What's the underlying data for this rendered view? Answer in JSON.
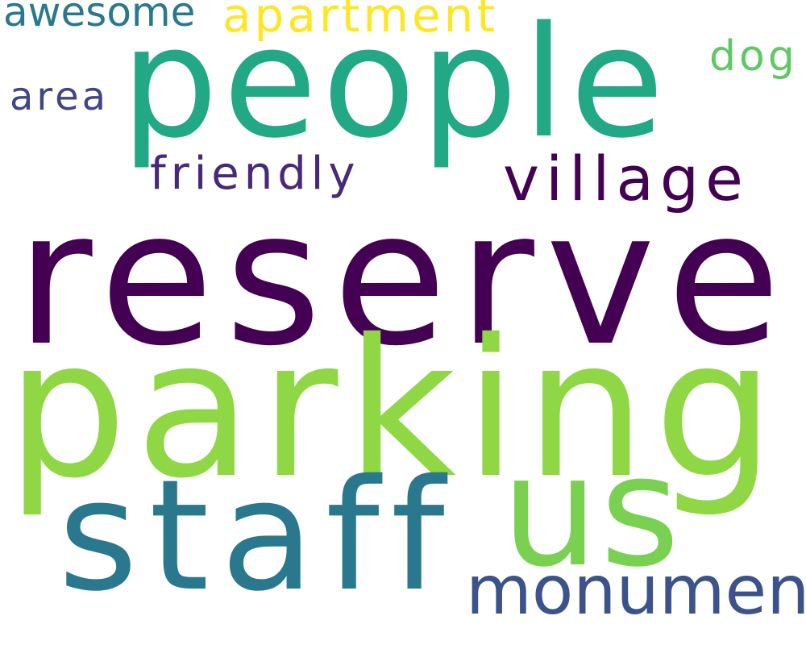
{
  "words": [
    {
      "key": "reserve",
      "text": "reserve",
      "color": "#440154"
    },
    {
      "key": "parking",
      "text": "parking",
      "color": "#8fd744"
    },
    {
      "key": "people",
      "text": "people",
      "color": "#22a884"
    },
    {
      "key": "staff",
      "text": "staff",
      "color": "#2a788e"
    },
    {
      "key": "us",
      "text": "us",
      "color": "#7ad151"
    },
    {
      "key": "monument",
      "text": "monument",
      "color": "#3b528b"
    },
    {
      "key": "village",
      "text": "village",
      "color": "#440154"
    },
    {
      "key": "friendly",
      "text": "friendly",
      "color": "#482878"
    },
    {
      "key": "apartment",
      "text": "apartment",
      "color": "#fde725"
    },
    {
      "key": "awesome",
      "text": "awesome",
      "color": "#2a788e"
    },
    {
      "key": "area",
      "text": "area",
      "color": "#414487"
    },
    {
      "key": "dog",
      "text": "dog",
      "color": "#5ec962"
    }
  ]
}
